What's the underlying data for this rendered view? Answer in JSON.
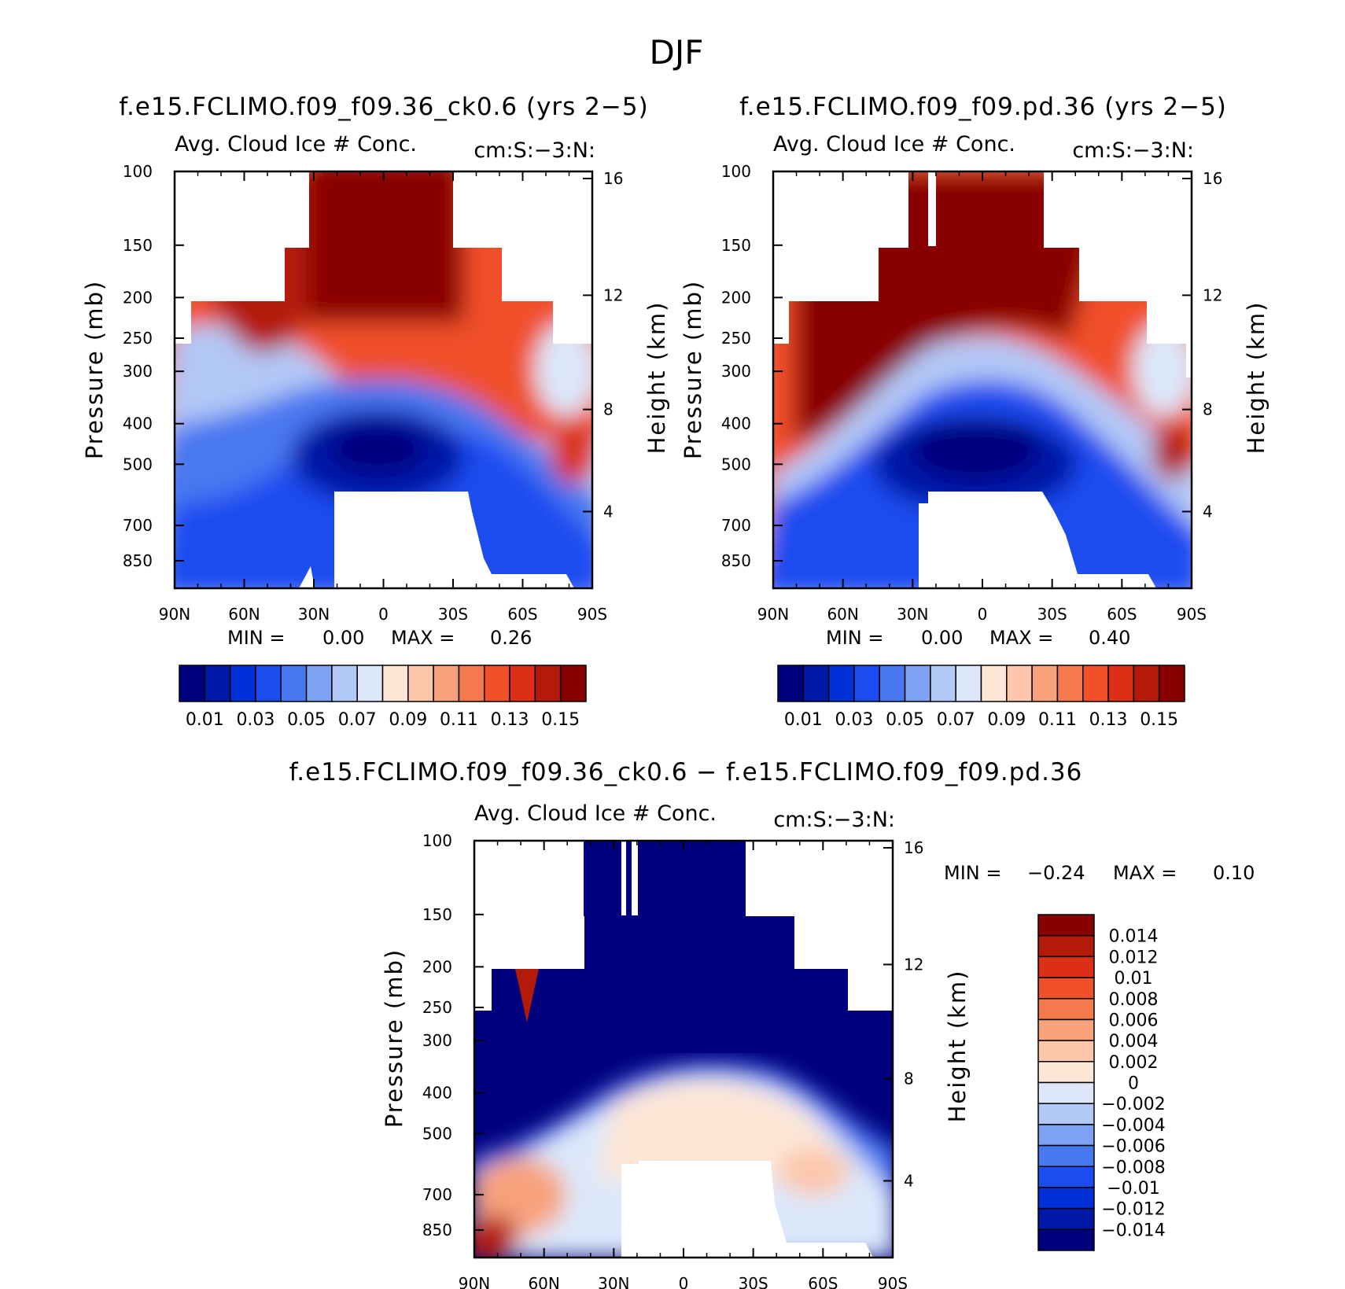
{
  "chart_data": {
    "type": "contour",
    "title": "DJF",
    "panels": [
      {
        "title": "f.e15.FCLIMO.f09_f09.36_ck0.6 (yrs 2−5)",
        "left_label": "Avg. Cloud Ice # Conc.",
        "right_label": "cm:S:−3:N:",
        "ylabel": "Pressure (mb)",
        "y2label": "Height (km)",
        "x_ticks": [
          "90N",
          "60N",
          "30N",
          "0",
          "30S",
          "60S",
          "90S"
        ],
        "y_ticks": [
          "100",
          "150",
          "200",
          "250",
          "300",
          "400",
          "500",
          "700",
          "850"
        ],
        "y2_ticks": [
          "16",
          "12",
          "8",
          "4"
        ],
        "stats": {
          "min_label": "MIN =",
          "min": "0.00",
          "max_label": "MAX =",
          "max": "0.26"
        },
        "colorbar_labels": [
          "0.01",
          "0.03",
          "0.05",
          "0.07",
          "0.09",
          "0.11",
          "0.13",
          "0.15"
        ]
      },
      {
        "title": "f.e15.FCLIMO.f09_f09.pd.36 (yrs 2−5)",
        "left_label": "Avg. Cloud Ice # Conc.",
        "right_label": "cm:S:−3:N:",
        "ylabel": "Pressure (mb)",
        "y2label": "Height (km)",
        "x_ticks": [
          "90N",
          "60N",
          "30N",
          "0",
          "30S",
          "60S",
          "90S"
        ],
        "y_ticks": [
          "100",
          "150",
          "200",
          "250",
          "300",
          "400",
          "500",
          "700",
          "850"
        ],
        "y2_ticks": [
          "16",
          "12",
          "8",
          "4"
        ],
        "stats": {
          "min_label": "MIN =",
          "min": "0.00",
          "max_label": "MAX =",
          "max": "0.40"
        },
        "colorbar_labels": [
          "0.01",
          "0.03",
          "0.05",
          "0.07",
          "0.09",
          "0.11",
          "0.13",
          "0.15"
        ]
      },
      {
        "title": "f.e15.FCLIMO.f09_f09.36_ck0.6 − f.e15.FCLIMO.f09_f09.pd.36",
        "left_label": "Avg. Cloud Ice # Conc.",
        "right_label": "cm:S:−3:N:",
        "ylabel": "Pressure (mb)",
        "y2label": "Height (km)",
        "x_ticks": [
          "90N",
          "60N",
          "30N",
          "0",
          "30S",
          "60S",
          "90S"
        ],
        "y_ticks": [
          "100",
          "150",
          "200",
          "250",
          "300",
          "400",
          "500",
          "700",
          "850"
        ],
        "y2_ticks": [
          "16",
          "12",
          "8",
          "4"
        ],
        "stats": {
          "min_label": "MIN =",
          "min": "−0.24",
          "max_label": "MAX =",
          "max": "0.10"
        },
        "colorbar_labels": [
          "0.014",
          "0.012",
          "0.01",
          "0.008",
          "0.006",
          "0.004",
          "0.002",
          "0",
          "−0.002",
          "−0.004",
          "−0.006",
          "−0.008",
          "−0.01",
          "−0.012",
          "−0.014"
        ]
      }
    ],
    "palette": [
      "#00007e",
      "#0018a6",
      "#0030d6",
      "#1a4cf0",
      "#4878f0",
      "#7ea2f2",
      "#b2c8f6",
      "#dce8fa",
      "#fde6d6",
      "#fcc6aa",
      "#f8a27c",
      "#f47a4e",
      "#f0502a",
      "#dc3016",
      "#b41a0a",
      "#8a0000"
    ]
  }
}
